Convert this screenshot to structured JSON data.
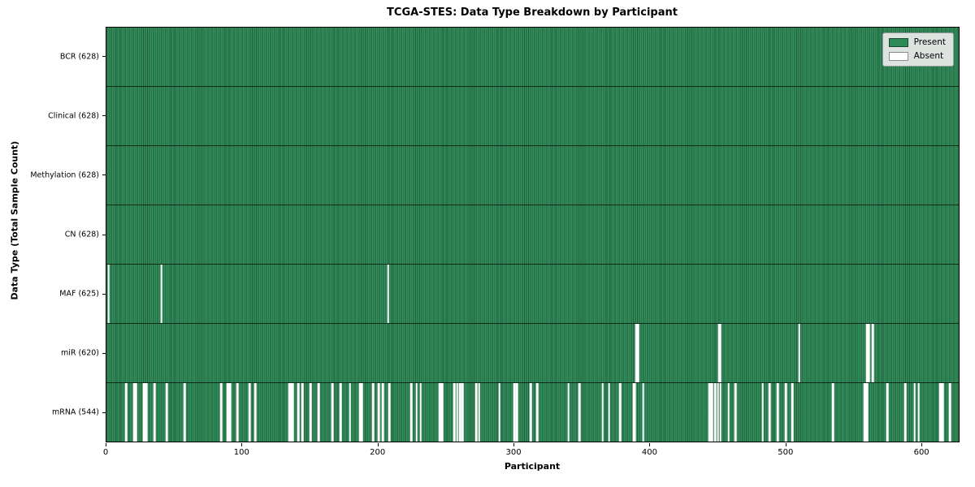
{
  "title": "TCGA-STES: Data Type Breakdown by Participant",
  "axes": {
    "xlabel": "Participant",
    "ylabel": "Data Type (Total Sample Count)"
  },
  "legend": {
    "entries": [
      {
        "label": "Present",
        "color": "#2e8b57"
      },
      {
        "label": "Absent",
        "color": "#ffffff"
      }
    ]
  },
  "colors": {
    "present": "#2e8b57",
    "present_edge": "#1d5e3b",
    "absent": "#ffffff",
    "spine": "#000000",
    "legend_bg": "#ececec"
  },
  "chart_data": {
    "type": "heatmap",
    "title": "TCGA-STES: Data Type Breakdown by Participant",
    "xlabel": "Participant",
    "ylabel": "Data Type (Total Sample Count)",
    "legend": [
      "Present",
      "Absent"
    ],
    "legend_position": "upper right",
    "x_range": [
      0,
      628
    ],
    "x_ticks": [
      0,
      100,
      200,
      300,
      400,
      500,
      600
    ],
    "total_participants": 628,
    "categories": [
      "BCR (628)",
      "Clinical (628)",
      "Methylation (628)",
      "CN (628)",
      "MAF (625)",
      "miR (620)",
      "mRNA (544)"
    ],
    "rows": [
      {
        "label": "BCR (628)",
        "data_type": "BCR",
        "present_count": 628,
        "absent_count": 0,
        "absent_participants": []
      },
      {
        "label": "Clinical (628)",
        "data_type": "Clinical",
        "present_count": 628,
        "absent_count": 0,
        "absent_participants": []
      },
      {
        "label": "Methylation (628)",
        "data_type": "Methylation",
        "present_count": 628,
        "absent_count": 0,
        "absent_participants": []
      },
      {
        "label": "CN (628)",
        "data_type": "CN",
        "present_count": 628,
        "absent_count": 0,
        "absent_participants": []
      },
      {
        "label": "MAF (625)",
        "data_type": "MAF",
        "present_count": 625,
        "absent_count": 3,
        "absent_participants": [
          1,
          40,
          207
        ]
      },
      {
        "label": "miR (620)",
        "data_type": "miR",
        "present_count": 620,
        "absent_count": 8,
        "absent_participants": [
          390,
          391,
          451,
          452,
          510,
          560,
          561,
          564
        ]
      },
      {
        "label": "mRNA (544)",
        "data_type": "mRNA",
        "present_count": 544,
        "absent_count": 84,
        "absent_participants": [
          14,
          20,
          21,
          27,
          28,
          29,
          35,
          44,
          57,
          84,
          89,
          90,
          91,
          96,
          105,
          109,
          134,
          135,
          136,
          137,
          141,
          144,
          150,
          156,
          166,
          172,
          179,
          186,
          187,
          188,
          196,
          200,
          203,
          208,
          224,
          228,
          231,
          245,
          246,
          247,
          256,
          258,
          260,
          262,
          272,
          274,
          289,
          300,
          302,
          312,
          317,
          340,
          348,
          365,
          370,
          378,
          388,
          389,
          395,
          444,
          445,
          446,
          448,
          450,
          452,
          458,
          463,
          483,
          488,
          494,
          500,
          505,
          535,
          558,
          559,
          560,
          575,
          588,
          595,
          598,
          614,
          615,
          616,
          621
        ]
      }
    ]
  }
}
